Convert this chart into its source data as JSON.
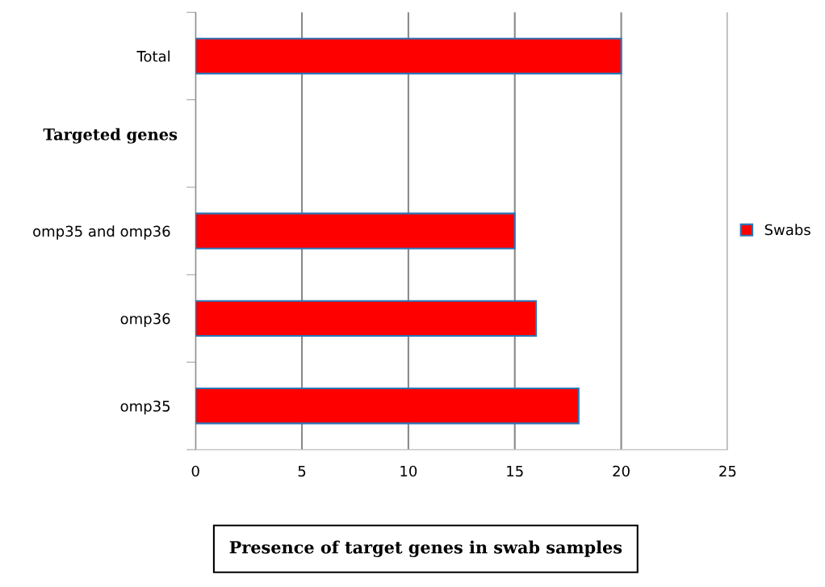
{
  "chart_data": {
    "type": "bar",
    "orientation": "horizontal",
    "title": "Presence of target genes in swab samples",
    "ylabel": "Targeted genes",
    "categories": [
      "Total",
      null,
      "omp35 and omp36",
      "omp36",
      "omp35"
    ],
    "series": [
      {
        "name": "Swabs",
        "color": "#ff0000",
        "values": [
          20,
          null,
          15,
          16,
          18
        ]
      }
    ],
    "xlim": [
      0,
      25
    ],
    "xticks": [
      0,
      5,
      10,
      15,
      20,
      25
    ],
    "grid": "x",
    "legend": "right"
  }
}
